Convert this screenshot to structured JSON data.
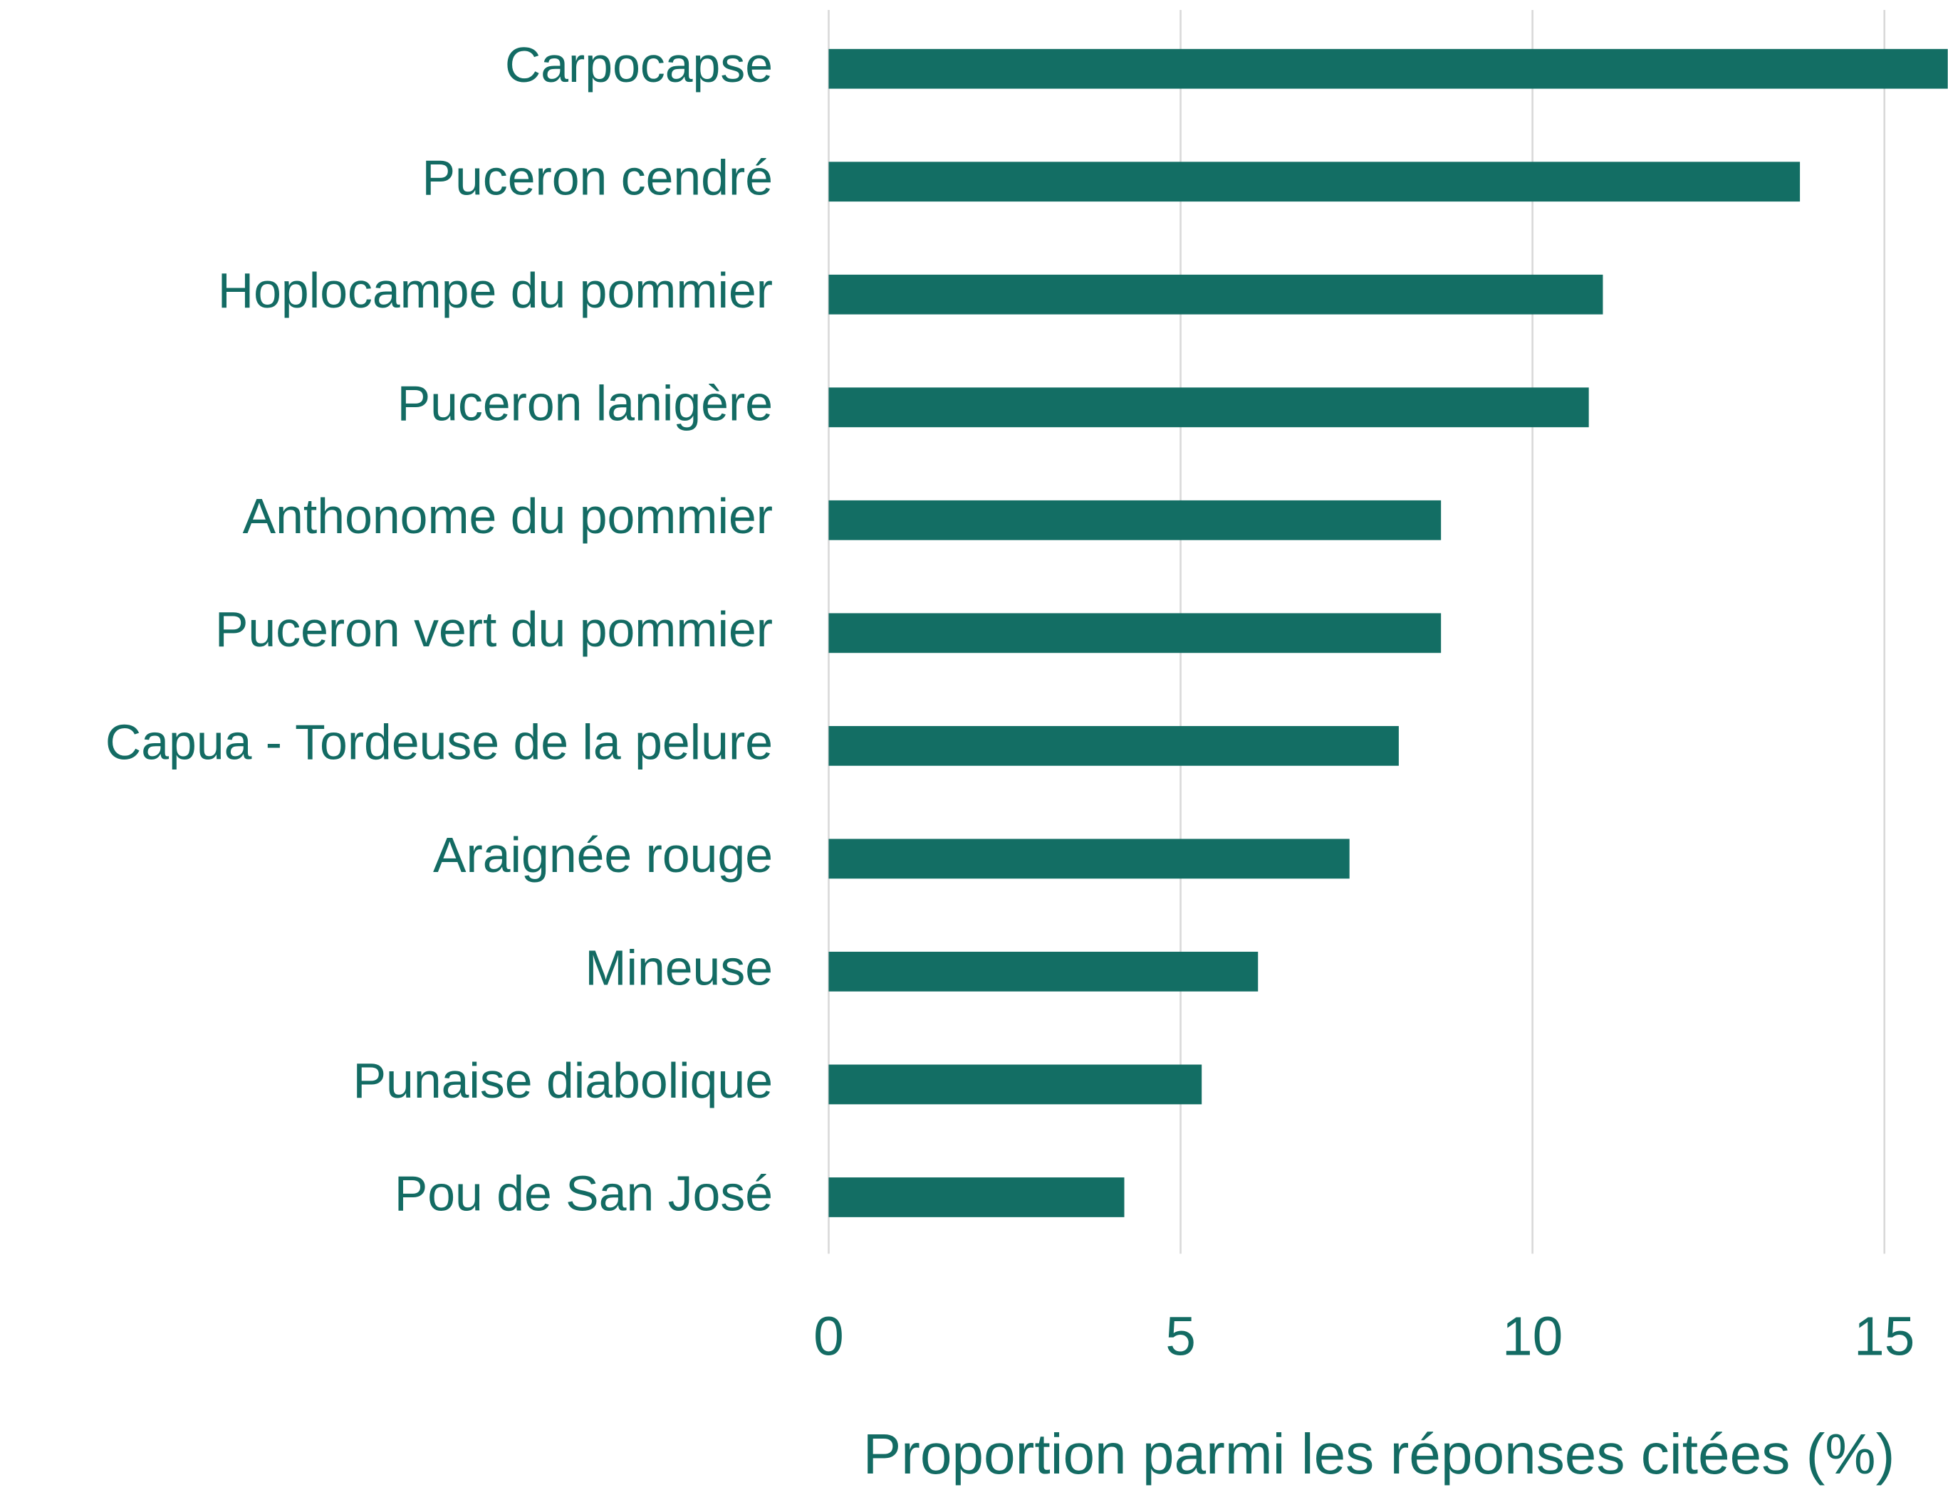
{
  "chart_data": {
    "type": "bar",
    "orientation": "horizontal",
    "x_label": "Proportion parmi les réponses citées (%)",
    "categories": [
      "Carpocapse",
      "Puceron cendré",
      "Hoplocampe du pommier",
      "Puceron lanigère",
      "Anthonome du pommier",
      "Puceron vert du pommier",
      "Capua - Tordeuse de la pelure",
      "Araignée rouge",
      "Mineuse",
      "Punaise diabolique",
      "Pou de San José"
    ],
    "values": [
      15.9,
      13.8,
      11.0,
      10.8,
      8.7,
      8.7,
      8.1,
      7.4,
      6.1,
      5.3,
      4.2
    ],
    "color": "#136e64",
    "xlim": [
      0,
      15.9
    ],
    "xticks": [
      0,
      5,
      10,
      15
    ],
    "grid": true
  }
}
